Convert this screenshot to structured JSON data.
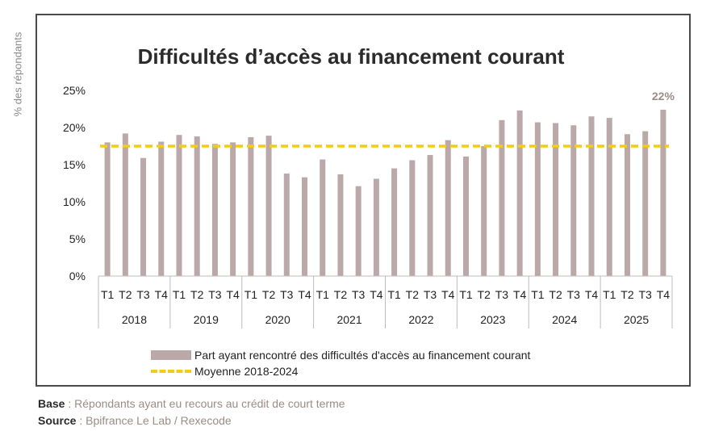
{
  "y_axis_title": "% des répondants",
  "legend": {
    "bar_label": "Part ayant rencontré des difficultés d'accès au financement courant",
    "line_label": "Moyenne 2018-2024"
  },
  "footer": {
    "base_label": "Base",
    "base_text": " : Répondants ayant eu recours au crédit de court terme",
    "source_label": "Source",
    "source_text": " : Bpifrance Le Lab / Rexecode"
  },
  "colors": {
    "bar": "#baa9a8",
    "average_line": "#f4cc16",
    "last_label": "#9c8c86"
  },
  "chart_data": {
    "type": "bar",
    "title": "Difficultés d’accès au financement courant",
    "ylabel": "% des répondants",
    "ylim": [
      0,
      25
    ],
    "yticks": [
      "0%",
      "5%",
      "10%",
      "15%",
      "20%",
      "25%"
    ],
    "grid": false,
    "legend_position": "bottom",
    "years": [
      "2018",
      "2019",
      "2020",
      "2021",
      "2022",
      "2023",
      "2024",
      "2025"
    ],
    "quarters": [
      "T1",
      "T2",
      "T3",
      "T4"
    ],
    "series": [
      {
        "name": "Part ayant rencontré des difficultés d'accès au financement courant",
        "values": [
          18.0,
          19.2,
          15.9,
          18.1,
          19.0,
          18.8,
          17.8,
          18.0,
          18.7,
          18.9,
          13.8,
          13.3,
          15.7,
          13.7,
          12.1,
          13.1,
          14.5,
          15.6,
          16.3,
          18.3,
          16.1,
          17.5,
          21.0,
          22.3,
          20.7,
          20.6,
          20.3,
          21.5,
          21.3,
          19.1,
          19.5,
          22.4
        ]
      },
      {
        "name": "Moyenne 2018-2024",
        "value": 17.5
      }
    ],
    "data_labels": [
      {
        "index": 31,
        "text": "22%"
      }
    ]
  }
}
